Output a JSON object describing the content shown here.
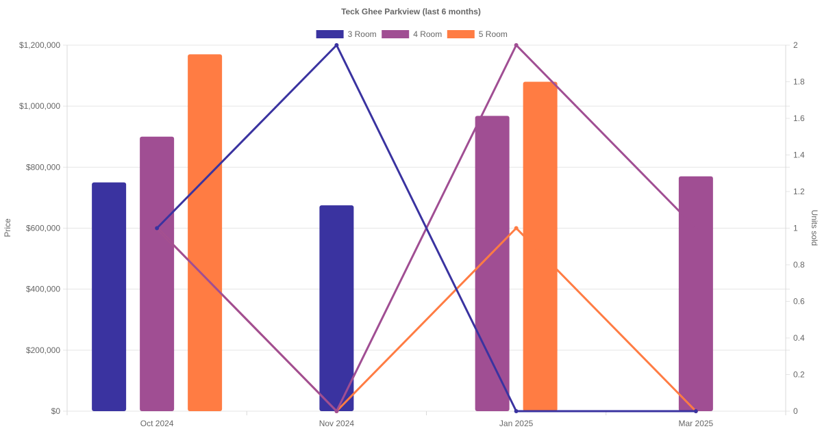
{
  "chart_data": {
    "type": "bar",
    "title": "Teck Ghee Parkview (last 6 months)",
    "categories": [
      "Oct 2024",
      "Nov 2024",
      "Jan 2025",
      "Mar 2025"
    ],
    "ylabel": "Price",
    "y2label": "Units sold",
    "ylim": [
      0,
      1200000
    ],
    "y2lim": [
      0,
      2
    ],
    "y_ticks": [
      "$0",
      "$200,000",
      "$400,000",
      "$600,000",
      "$800,000",
      "$1,000,000",
      "$1,200,000"
    ],
    "y_tick_values": [
      0,
      200000,
      400000,
      600000,
      800000,
      1000000,
      1200000
    ],
    "y2_ticks": [
      "0",
      "0.2",
      "0.4",
      "0.6",
      "0.8",
      "1",
      "1.2",
      "1.4",
      "1.6",
      "1.8",
      "2"
    ],
    "y2_tick_values": [
      0,
      0.2,
      0.4,
      0.6,
      0.8,
      1,
      1.2,
      1.4,
      1.6,
      1.8,
      2
    ],
    "legend_position": "top",
    "grid": true,
    "series": [
      {
        "name": "3 Room",
        "color": "#3a33a0",
        "prices": [
          750000,
          675000,
          null,
          null
        ],
        "units": [
          1,
          2,
          0,
          0
        ]
      },
      {
        "name": "4 Room",
        "color": "#a04e93",
        "prices": [
          900000,
          null,
          968000,
          770000
        ],
        "units": [
          1,
          0,
          2,
          1
        ]
      },
      {
        "name": "5 Room",
        "color": "#ff7c43",
        "prices": [
          1170000,
          null,
          1080000,
          null
        ],
        "units": [
          1,
          0,
          1,
          0
        ]
      }
    ]
  }
}
